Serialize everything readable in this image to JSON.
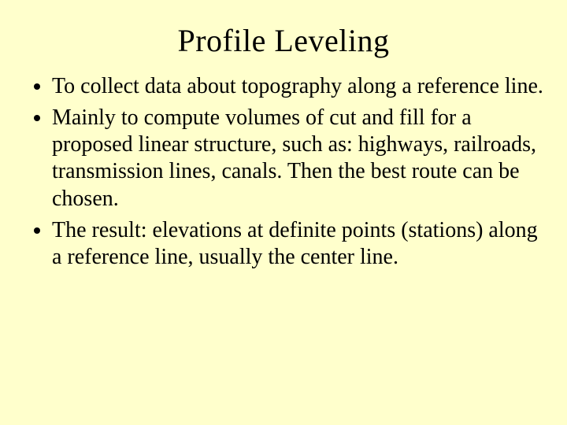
{
  "background_color": "#ffffcc",
  "text_color": "#000000",
  "font_family": "Times New Roman",
  "title": {
    "text": "Profile Leveling",
    "fontsize": 40,
    "align": "center"
  },
  "bullets": {
    "fontsize": 28,
    "items": [
      "To collect data about topography along a reference line.",
      "Mainly to compute volumes of cut and fill for a proposed linear structure, such as: highways, railroads, transmission lines, canals. Then the best route can be chosen.",
      "The result: elevations at definite points (stations) along a reference line, usually the center line."
    ]
  }
}
